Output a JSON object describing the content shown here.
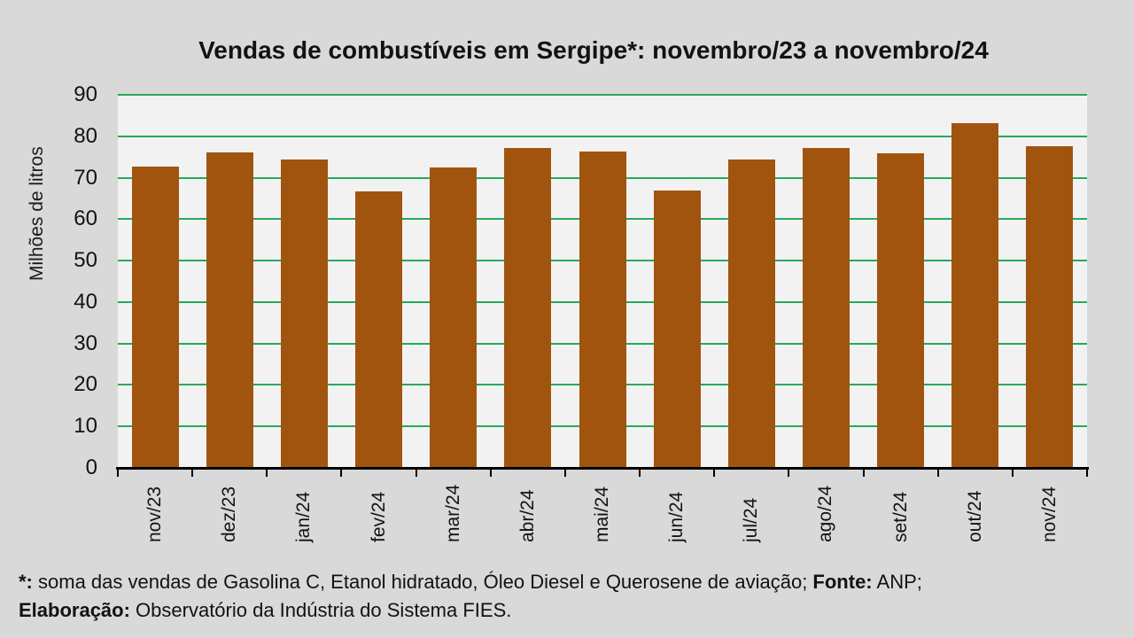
{
  "chart_data": {
    "type": "bar",
    "title": "Vendas de combustíveis em Sergipe*: novembro/23 a novembro/24",
    "xlabel": "",
    "ylabel": "Milhões de litros",
    "categories": [
      "nov/23",
      "dez/23",
      "jan/24",
      "fev/24",
      "mar/24",
      "abr/24",
      "mai/24",
      "jun/24",
      "jul/24",
      "ago/24",
      "set/24",
      "out/24",
      "nov/24"
    ],
    "values": [
      72.7,
      76.1,
      74.4,
      66.6,
      72.4,
      77.2,
      76.3,
      67.0,
      74.4,
      77.2,
      76.0,
      83.2,
      77.6
    ],
    "ylim": [
      0,
      90
    ],
    "yticks": [
      0,
      10,
      20,
      30,
      40,
      50,
      60,
      70,
      80,
      90
    ],
    "grid": true,
    "legend_position": "none",
    "bar_color": "#A1540E",
    "grid_color": "#25AA58",
    "plot_bg": "#F2F2F2",
    "page_bg": "#D9D9D9"
  },
  "footer": {
    "line1": [
      {
        "text": "*:",
        "bold": true
      },
      {
        "text": " soma das vendas de Gasolina C, Etanol hidratado, Óleo Diesel e Querosene de aviação; ",
        "bold": false
      },
      {
        "text": "Fonte:",
        "bold": true
      },
      {
        "text": " ANP;",
        "bold": false
      }
    ],
    "line2": [
      {
        "text": "Elaboração:",
        "bold": true
      },
      {
        "text": " Observatório da Indústria do Sistema FIES.",
        "bold": false
      }
    ]
  }
}
